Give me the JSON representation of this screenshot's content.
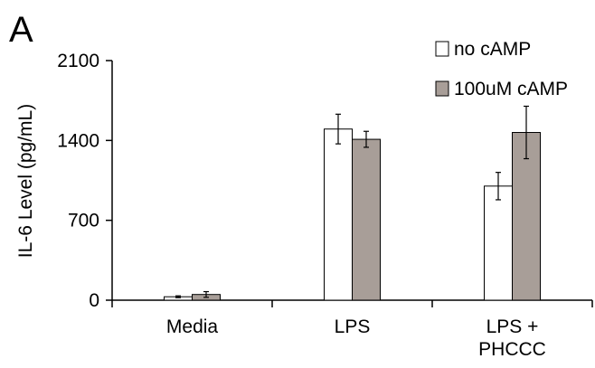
{
  "panel_label": "A",
  "chart_data": {
    "type": "bar",
    "title": "",
    "xlabel": "",
    "ylabel": "IL-6 Level (pg/mL)",
    "ylim": [
      0,
      2100
    ],
    "yticks": [
      0,
      700,
      1400,
      2100
    ],
    "categories": [
      [
        "Media"
      ],
      [
        "LPS"
      ],
      [
        "LPS +",
        "PHCCC"
      ]
    ],
    "series": [
      {
        "name": "no cAMP",
        "color": "#ffffff",
        "values": [
          30,
          1500,
          1000
        ],
        "errors": [
          8,
          130,
          120
        ]
      },
      {
        "name": "100uM cAMP",
        "color": "#a89e98",
        "values": [
          50,
          1410,
          1470
        ],
        "errors": [
          25,
          70,
          230
        ]
      }
    ],
    "legend": "top-right",
    "grid": false
  }
}
